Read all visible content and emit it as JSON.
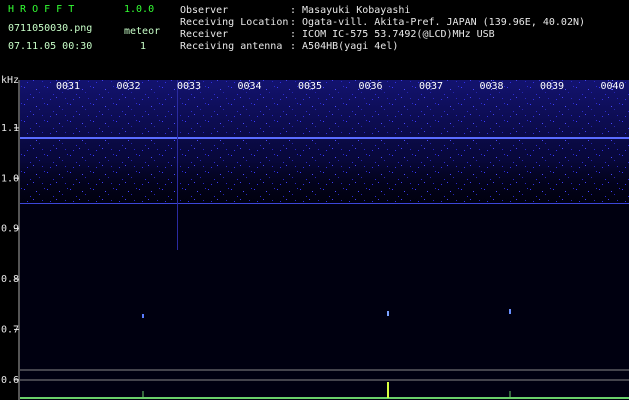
{
  "header": {
    "app_name": "H R O F F T",
    "version": "1.0.0",
    "file": "0711050030.png",
    "meteor_label": "meteor",
    "meteor_count": 1,
    "datetime": "07.11.05 00:30",
    "info": [
      {
        "label": "Observer",
        "value": ": Masayuki Kobayashi"
      },
      {
        "label": "Receiving Location",
        "value": ": Ogata-vill. Akita-Pref. JAPAN (139.96E, 40.02N)"
      },
      {
        "label": "Receiver",
        "value": ": ICOM IC-575 53.7492(@LCD)MHz USB"
      },
      {
        "label": "Receiving antenna",
        "value": ": A504HB(yagi 4el)"
      }
    ]
  },
  "chart_data": {
    "type": "spectrogram",
    "ylabel": "kHz",
    "categories": [
      "0031",
      "0032",
      "0033",
      "0034",
      "0035",
      "0036",
      "0037",
      "0038",
      "0039",
      "0040"
    ],
    "ylim": [
      0.56,
      1.195
    ],
    "yticks": [
      0.6,
      0.7,
      0.8,
      0.9,
      {
        "value": 1,
        "label": "1.0"
      },
      1.1
    ]
  }
}
